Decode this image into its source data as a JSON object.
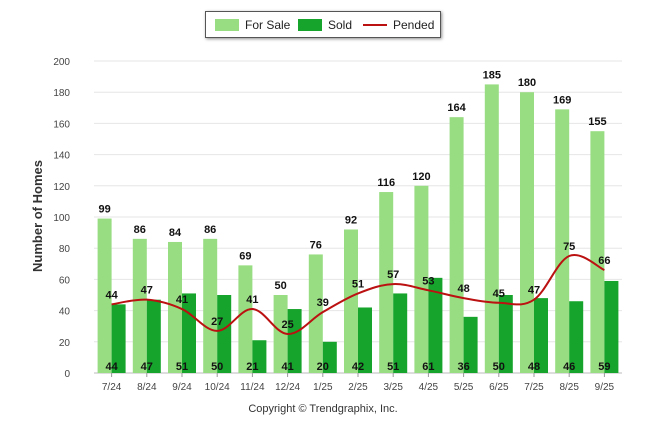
{
  "colors": {
    "for_sale": "#99dd83",
    "sold": "#17a42c",
    "pended": "#bb1111"
  },
  "legend": {
    "for_sale": "For Sale",
    "sold": "Sold",
    "pended": "Pended"
  },
  "copyright": "Copyright © Trendgraphix, Inc.",
  "chart_data": {
    "type": "bar",
    "title": "",
    "xlabel": "",
    "ylabel": "Number of Homes",
    "ylim": [
      0,
      200
    ],
    "yticks": [
      0,
      20,
      40,
      60,
      80,
      100,
      120,
      140,
      160,
      180,
      200
    ],
    "categories": [
      "7/24",
      "8/24",
      "9/24",
      "10/24",
      "11/24",
      "12/24",
      "1/25",
      "2/25",
      "3/25",
      "4/25",
      "5/25",
      "6/25",
      "7/25",
      "8/25",
      "9/25"
    ],
    "series": [
      {
        "name": "For Sale",
        "type": "bar",
        "values": [
          99,
          86,
          84,
          86,
          69,
          50,
          76,
          92,
          116,
          120,
          164,
          185,
          180,
          169,
          155
        ]
      },
      {
        "name": "Sold",
        "type": "bar",
        "values": [
          44,
          47,
          51,
          50,
          21,
          41,
          20,
          42,
          51,
          61,
          36,
          50,
          48,
          46,
          59
        ]
      },
      {
        "name": "Pended",
        "type": "line",
        "values": [
          44,
          47,
          41,
          27,
          41,
          25,
          39,
          51,
          57,
          53,
          48,
          45,
          47,
          75,
          66
        ]
      }
    ],
    "legend_position": "top-center"
  }
}
